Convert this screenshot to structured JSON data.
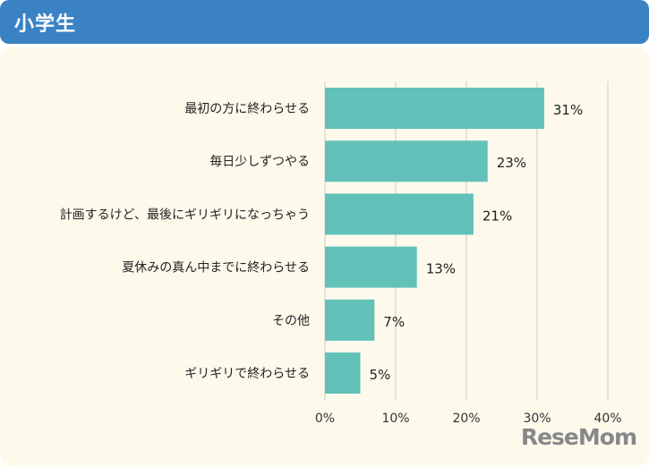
{
  "header": {
    "title": "小学生"
  },
  "logo": "ReseMom",
  "colors": {
    "header": "#3a82c4",
    "panel": "#fdfaec",
    "bar": "#62c1b8",
    "grid": "#dddad0"
  },
  "chart_data": {
    "type": "bar",
    "orientation": "horizontal",
    "title": "小学生",
    "categories": [
      "最初の方に終わらせる",
      "毎日少しずつやる",
      "計画するけど、最後にギリギリになっちゃう",
      "夏休みの真ん中までに終わらせる",
      "その他",
      "ギリギリで終わらせる"
    ],
    "values": [
      31,
      23,
      21,
      13,
      7,
      5
    ],
    "value_labels": [
      "31%",
      "23%",
      "21%",
      "13%",
      "7%",
      "5%"
    ],
    "xlim": [
      0,
      40
    ],
    "xticks": [
      0,
      10,
      20,
      30,
      40
    ],
    "xtick_labels": [
      "0%",
      "10%",
      "20%",
      "30%",
      "40%"
    ],
    "grid": true,
    "legend": "none"
  }
}
